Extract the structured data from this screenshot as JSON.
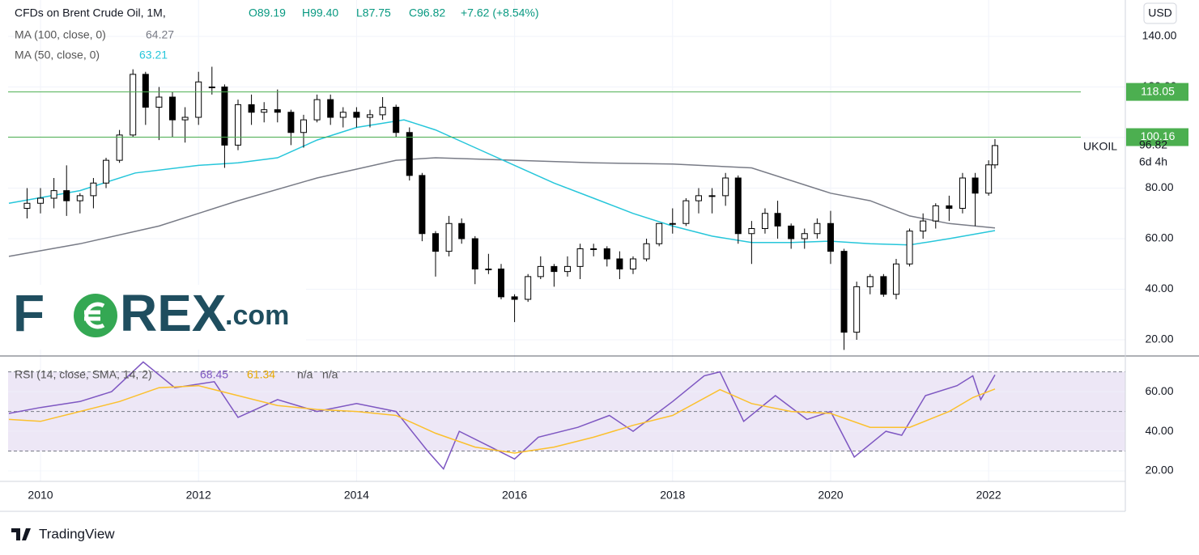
{
  "chart_data": [
    {
      "type": "candlestick",
      "title": "CFDs on Brent Crude Oil, 1M,",
      "header_values": [
        "O89.19",
        "H99.40",
        "L87.75",
        "C96.82",
        "+7.62 (+8.54%)"
      ],
      "symbol": "UKOIL",
      "countdown": "6d 4h",
      "currency": "USD",
      "x": [
        2009.83,
        2010.0,
        2010.17,
        2010.33,
        2010.5,
        2010.67,
        2010.83,
        2011.0,
        2011.17,
        2011.33,
        2011.5,
        2011.67,
        2011.83,
        2012.0,
        2012.17,
        2012.33,
        2012.5,
        2012.67,
        2012.83,
        2013.0,
        2013.17,
        2013.33,
        2013.5,
        2013.67,
        2013.83,
        2014.0,
        2014.17,
        2014.33,
        2014.5,
        2014.67,
        2014.83,
        2015.0,
        2015.17,
        2015.33,
        2015.5,
        2015.67,
        2015.83,
        2016.0,
        2016.17,
        2016.33,
        2016.5,
        2016.67,
        2016.83,
        2017.0,
        2017.17,
        2017.33,
        2017.5,
        2017.67,
        2017.83,
        2018.0,
        2018.17,
        2018.33,
        2018.5,
        2018.67,
        2018.83,
        2019.0,
        2019.17,
        2019.33,
        2019.5,
        2019.67,
        2019.83,
        2020.0,
        2020.17,
        2020.33,
        2020.5,
        2020.67,
        2020.83,
        2021.0,
        2021.17,
        2021.33,
        2021.5,
        2021.67,
        2021.83,
        2022.0,
        2022.08
      ],
      "open": [
        72,
        74,
        76,
        79,
        75,
        77,
        82,
        91,
        101,
        125,
        112,
        116,
        107,
        108,
        120,
        120,
        97,
        113,
        110,
        111,
        110,
        102,
        107,
        115,
        108,
        110,
        108,
        109,
        112,
        102,
        85,
        62,
        55,
        66,
        60,
        48,
        48,
        37,
        36,
        45,
        49,
        47,
        49,
        56,
        56,
        52,
        48,
        52,
        58,
        66,
        66,
        75,
        77,
        77,
        84,
        62,
        64,
        70,
        65,
        60,
        62,
        66,
        55,
        23,
        41,
        45,
        38,
        50,
        63,
        67,
        73,
        72,
        84,
        78,
        89.19
      ],
      "high": [
        80,
        80,
        84,
        89,
        78,
        84,
        92,
        103,
        127,
        126,
        120,
        118,
        112,
        126,
        128,
        121,
        115,
        117,
        114,
        119,
        111,
        109,
        117,
        117,
        112,
        112,
        111,
        116,
        113,
        104,
        86,
        63,
        69,
        68,
        61,
        54,
        50,
        38,
        46,
        53,
        50,
        53,
        58,
        58,
        57,
        55,
        53,
        60,
        66,
        72,
        76,
        80,
        80,
        86,
        85,
        67,
        72,
        75,
        66,
        64,
        68,
        71,
        56,
        43,
        46,
        46,
        52,
        64,
        70,
        74,
        77,
        86,
        86,
        91,
        99.4
      ],
      "low": [
        68,
        70,
        72,
        69,
        70,
        72,
        80,
        90,
        100,
        105,
        99,
        100,
        98,
        105,
        117,
        88,
        95,
        105,
        106,
        106,
        97,
        96,
        106,
        105,
        104,
        104,
        104,
        107,
        100,
        83,
        59,
        45,
        53,
        58,
        42,
        46,
        36,
        27,
        35,
        44,
        41,
        45,
        44,
        53,
        49,
        44,
        46,
        51,
        57,
        62,
        65,
        70,
        70,
        73,
        58,
        50,
        62,
        60,
        56,
        56,
        60,
        50,
        16,
        20,
        38,
        37,
        36,
        49,
        60,
        64,
        67,
        70,
        65,
        77,
        87.75
      ],
      "close": [
        74,
        76,
        79,
        75,
        77,
        82,
        91,
        101,
        125,
        112,
        116,
        107,
        108,
        122,
        120,
        97,
        113,
        110,
        111,
        110,
        102,
        107,
        115,
        108,
        110,
        108,
        109,
        112,
        102,
        85,
        62,
        55,
        66,
        60,
        48,
        48,
        37,
        36,
        45,
        49,
        47,
        49,
        56,
        56,
        52,
        48,
        52,
        58,
        66,
        66,
        75,
        77,
        77,
        84,
        62,
        64,
        70,
        65,
        60,
        62,
        66,
        55,
        23,
        41,
        45,
        38,
        50,
        63,
        67,
        73,
        72,
        84,
        78,
        89.19,
        96.82
      ],
      "up_color": "#ffffff",
      "down_color": "#000000",
      "xlim": [
        2009.59,
        2023.73
      ],
      "xticks": [
        2010,
        2012,
        2014,
        2016,
        2018,
        2020,
        2022
      ],
      "ylim": [
        13.6,
        154.4
      ],
      "yticks": [
        {
          "value": 20,
          "label": "20.00"
        },
        {
          "value": 40,
          "label": "40.00"
        },
        {
          "value": 60,
          "label": "60.00"
        },
        {
          "value": 80,
          "label": "80.00"
        },
        {
          "value": 100,
          "label": "100.00"
        },
        {
          "value": 120,
          "label": "120.00"
        },
        {
          "value": 140,
          "label": "140.00"
        }
      ],
      "grid": true,
      "levels": [
        118.05,
        100.16
      ],
      "level_color": "#4caf50",
      "series": [
        {
          "name": "MA (100, close, 0)",
          "legend_value": "64.27",
          "color": "#787b86",
          "x": [
            2009.6,
            2010.5,
            2011.5,
            2012.5,
            2013.5,
            2014.5,
            2015,
            2016,
            2017,
            2018,
            2019,
            2020,
            2020.5,
            2021,
            2021.5,
            2022.08
          ],
          "values": [
            53,
            58,
            65,
            75,
            84,
            91,
            92,
            91,
            90,
            89.5,
            88,
            78,
            75,
            69,
            66,
            64.27
          ]
        },
        {
          "name": "MA (50, close, 0)",
          "legend_value": "63.21",
          "color": "#26c6da",
          "x": [
            2009.6,
            2010.5,
            2011.2,
            2012,
            2012.5,
            2013,
            2013.5,
            2014,
            2014.6,
            2015,
            2015.5,
            2016,
            2016.5,
            2017,
            2017.5,
            2018,
            2018.5,
            2019,
            2019.5,
            2020,
            2020.5,
            2021,
            2021.5,
            2022.08
          ],
          "values": [
            74,
            79,
            86,
            89,
            90,
            92,
            99,
            104,
            107,
            103,
            96,
            89,
            82,
            76,
            70,
            65,
            61,
            58.5,
            58.5,
            59,
            58,
            57.5,
            60,
            63.21
          ]
        }
      ]
    },
    {
      "type": "line",
      "title": "RSI (14, close, SMA, 14, 2)",
      "legend_extra": [
        "n/a",
        "n/a"
      ],
      "xlim": [
        2009.59,
        2023.73
      ],
      "ylim": [
        14.7,
        77.6
      ],
      "yticks": [
        {
          "value": 20,
          "label": "20.00"
        },
        {
          "value": 40,
          "label": "40.00"
        },
        {
          "value": 60,
          "label": "60.00"
        }
      ],
      "bands": [
        30,
        50,
        70
      ],
      "band_color": "#ede7f6",
      "series": [
        {
          "legend_value": "68.45",
          "color": "#7e57c2",
          "x": [
            2009.6,
            2010,
            2010.5,
            2010.9,
            2011.3,
            2011.7,
            2012.2,
            2012.5,
            2013,
            2013.5,
            2014,
            2014.5,
            2014.9,
            2015.1,
            2015.3,
            2015.7,
            2016,
            2016.3,
            2016.8,
            2017.2,
            2017.5,
            2018,
            2018.4,
            2018.6,
            2018.9,
            2019.3,
            2019.7,
            2020,
            2020.3,
            2020.7,
            2020.9,
            2021.2,
            2021.6,
            2021.8,
            2021.9,
            2022.08
          ],
          "values": [
            49,
            52,
            55,
            60,
            75,
            62,
            65,
            47,
            56,
            50,
            54,
            50,
            30,
            21,
            40,
            32,
            26,
            37,
            42,
            48,
            40,
            55,
            68,
            70,
            45,
            58,
            46,
            50,
            27,
            40,
            38,
            58,
            63,
            68,
            56,
            68.45
          ]
        },
        {
          "legend_value": "61.34",
          "color": "#fbc02d",
          "x": [
            2009.6,
            2010,
            2010.5,
            2011,
            2011.5,
            2012,
            2012.5,
            2013,
            2013.5,
            2014,
            2014.5,
            2015,
            2015.5,
            2016,
            2016.5,
            2017,
            2017.5,
            2018,
            2018.6,
            2019,
            2019.5,
            2020,
            2020.5,
            2021,
            2021.5,
            2021.8,
            2022.08
          ],
          "values": [
            46,
            45,
            50,
            55,
            62,
            63,
            58,
            53,
            51,
            50,
            48,
            39,
            32,
            29,
            32,
            37,
            43,
            48,
            61,
            54,
            50,
            49,
            42,
            42,
            50,
            57,
            61.34
          ]
        }
      ]
    }
  ],
  "watermark": [
    "F",
    "REX",
    ".com"
  ],
  "footer": "TradingView"
}
